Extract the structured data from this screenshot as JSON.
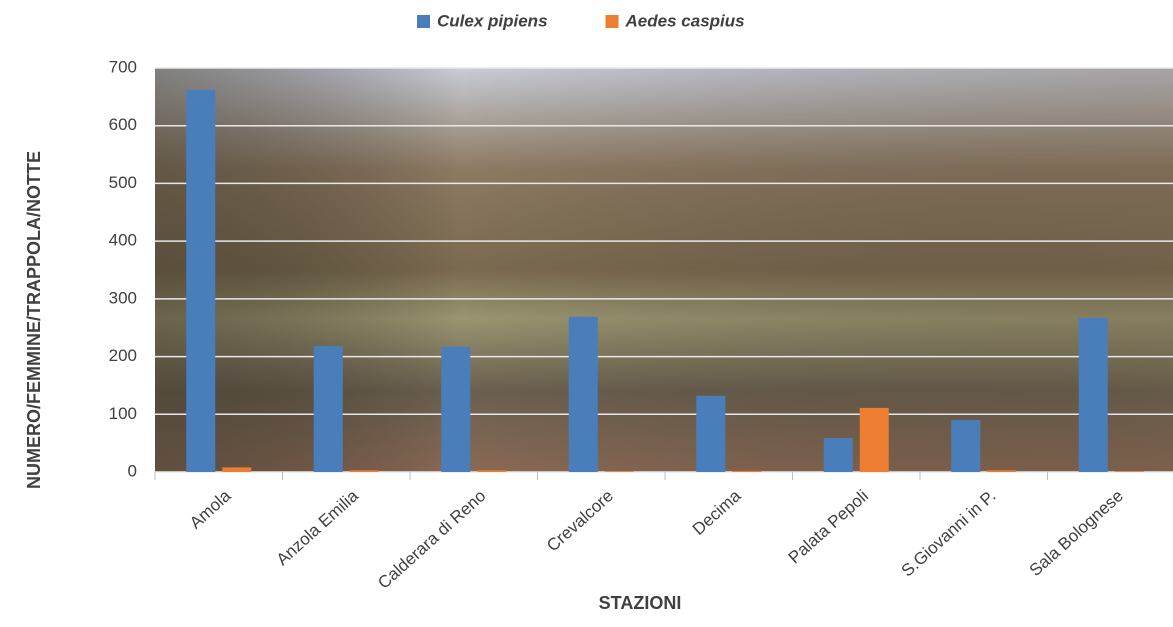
{
  "chart_data": {
    "type": "bar",
    "categories": [
      "Amola",
      "Anzola Emilia",
      "Calderara di Reno",
      "Crevalcore",
      "Decima",
      "Palata Pepoli",
      "S.Giovanni in P.",
      "Sala Bolognese"
    ],
    "series": [
      {
        "name": "Culex pipiens",
        "color": "#4a7ebb",
        "values": [
          662,
          218,
          217,
          269,
          132,
          59,
          90,
          267
        ]
      },
      {
        "name": "Aedes caspius",
        "color": "#ed7d31",
        "values": [
          8,
          3,
          3,
          1,
          2,
          111,
          3,
          1
        ]
      }
    ],
    "x_label": "STAZIONI",
    "y_label": "NUMERO/FEMMINE/TRAPPOLA/NOTTE",
    "ylim": [
      0,
      700
    ],
    "yticks": [
      0,
      100,
      200,
      300,
      400,
      500,
      600,
      700
    ],
    "grid": true
  }
}
